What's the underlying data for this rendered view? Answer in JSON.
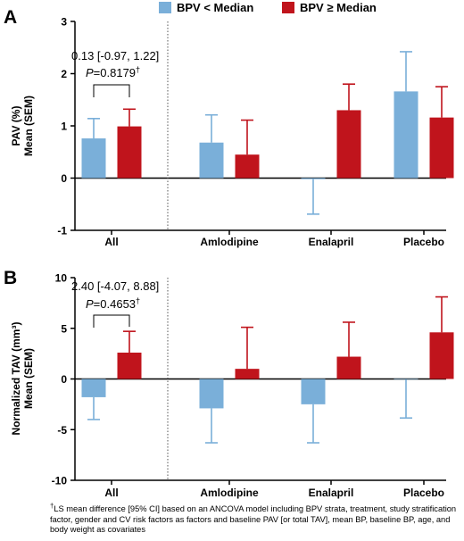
{
  "legend": [
    {
      "label": "BPV < Median",
      "color": "#7aafd9"
    },
    {
      "label": "BPV ≥ Median",
      "color": "#c0141c"
    }
  ],
  "chart_data": [
    {
      "panel_label": "A",
      "type": "bar",
      "ylabel_lines": [
        "PAV (%)",
        "Mean (SEM)"
      ],
      "ylim": [
        -1,
        3
      ],
      "yticks": [
        "-1",
        "0",
        "1",
        "2",
        "3"
      ],
      "categories": [
        "All",
        "Amlodipine",
        "Enalapril",
        "Placebo"
      ],
      "series": [
        {
          "name": "BPV < Median",
          "color": "#7aafd9",
          "values": [
            0.76,
            0.68,
            -0.02,
            1.66
          ],
          "error": [
            0.38,
            0.53,
            0.67,
            0.76
          ]
        },
        {
          "name": "BPV ≥ Median",
          "color": "#c0141c",
          "values": [
            0.99,
            0.45,
            1.3,
            1.16
          ],
          "error": [
            0.33,
            0.66,
            0.5,
            0.59
          ]
        }
      ],
      "annotation": {
        "line1": "0.13 [-0.97, 1.22]",
        "p_prefix": "P",
        "p_value": "=0.8179",
        "marker": "†"
      }
    },
    {
      "panel_label": "B",
      "type": "bar",
      "ylabel_lines": [
        "Normalized TAV (mm³)",
        "Mean (SEM)"
      ],
      "ylim": [
        -10,
        10
      ],
      "yticks": [
        "-10",
        "-5",
        "0",
        "5",
        "10"
      ],
      "categories": [
        "All",
        "Amlodipine",
        "Enalapril",
        "Placebo"
      ],
      "series": [
        {
          "name": "BPV < Median",
          "color": "#7aafd9",
          "values": [
            -1.8,
            -2.9,
            -2.5,
            -0.05
          ],
          "error": [
            2.2,
            3.4,
            3.8,
            3.8
          ]
        },
        {
          "name": "BPV ≥ Median",
          "color": "#c0141c",
          "values": [
            2.6,
            1.0,
            2.2,
            4.6
          ],
          "error": [
            2.1,
            4.1,
            3.4,
            3.5
          ]
        }
      ],
      "annotation": {
        "line1": "2.40 [-4.07, 8.88]",
        "p_prefix": "P",
        "p_value": "=0.4653",
        "marker": "†"
      }
    }
  ],
  "footnote": {
    "marker": "†",
    "text": "LS mean difference [95% CI] based on an ANCOVA model including BPV strata, treatment, study stratification factor, gender and CV risk factors as factors and baseline PAV [or total TAV], mean BP, baseline BP, age, and body weight as covariates"
  }
}
